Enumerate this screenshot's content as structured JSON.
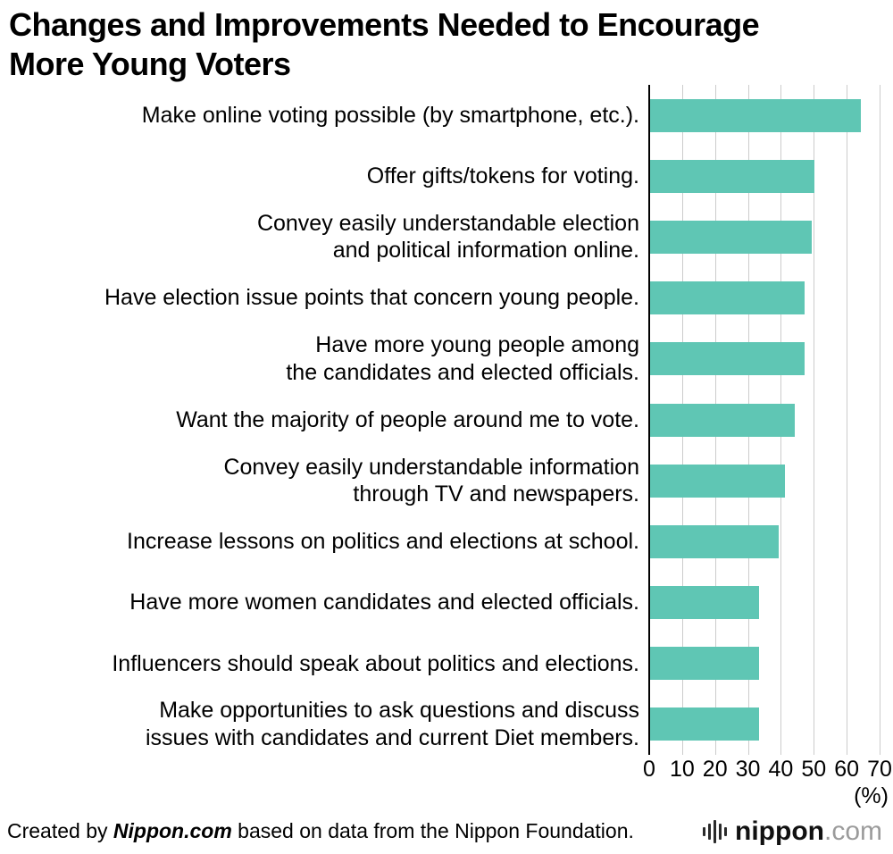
{
  "chart_data": {
    "type": "bar",
    "orientation": "horizontal",
    "title": "Changes and Improvements Needed to Encourage\nMore Young Voters",
    "categories": [
      "Make online voting possible (by smartphone, etc.).",
      "Offer gifts/tokens for voting.",
      "Convey easily understandable election\nand political information online.",
      "Have election issue points that concern young people.",
      "Have more young people among\nthe candidates and elected officials.",
      "Want the majority of people around me to vote.",
      "Convey easily understandable information\nthrough TV and newspapers.",
      "Increase lessons on politics and elections at school.",
      "Have more women candidates and elected officials.",
      "Influencers should speak about politics and elections.",
      "Make opportunities to ask questions and discuss\nissues with candidates and current Diet members."
    ],
    "values": [
      64,
      50,
      49,
      47,
      47,
      44,
      41,
      39,
      33,
      33,
      33
    ],
    "xlim": [
      0,
      70
    ],
    "x_ticks": [
      0,
      10,
      20,
      30,
      40,
      50,
      60,
      70
    ],
    "x_unit_label": "(%)",
    "bar_color": "#5fc6b4",
    "grid": true,
    "legend": "none"
  },
  "colors": {
    "bar": "#5fc6b4",
    "grid_line": "#cccccc",
    "axis": "#000000",
    "logo_tld_gray": "#9b9b9b"
  },
  "footer": {
    "prefix": "Created by ",
    "brand": "Nippon.com",
    "suffix": " based on data from the Nippon Foundation.",
    "logo_name": "nippon",
    "logo_tld": ".com"
  }
}
